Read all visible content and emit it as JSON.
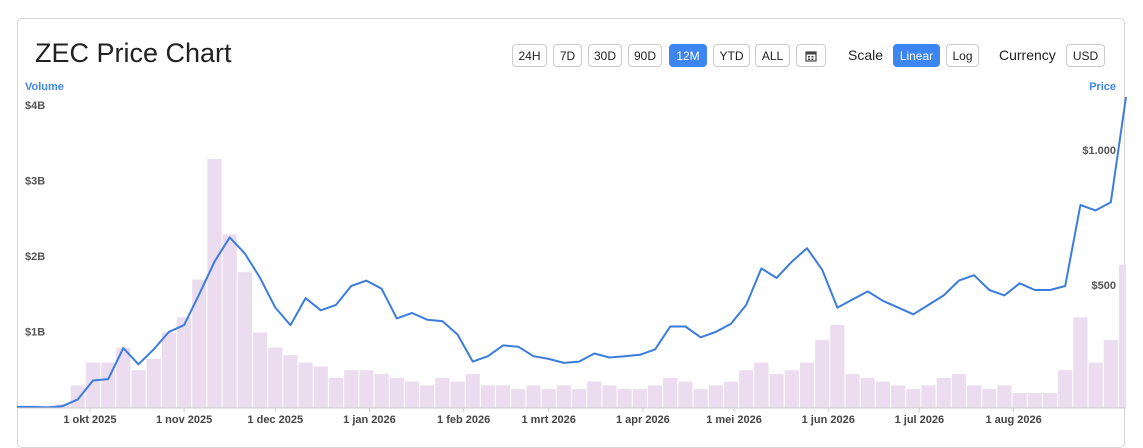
{
  "controls": {
    "title": "ZEC Price Chart",
    "ranges": [
      "24H",
      "7D",
      "30D",
      "90D",
      "12M",
      "YTD",
      "ALL"
    ],
    "scale_label": "Scale",
    "scales": [
      "Linear",
      "Log"
    ],
    "currency_label": "Currency",
    "currency": "USD"
  },
  "chart_data": {
    "type": "bar-line",
    "ylabel": "Volume",
    "y2label": "Price",
    "x": [
      "2025-09-07",
      "2025-09-12",
      "2025-09-17",
      "2025-09-22",
      "2025-09-27",
      "2025-10-02",
      "2025-10-07",
      "2025-10-12",
      "2025-10-17",
      "2025-10-22",
      "2025-10-27",
      "2025-11-01",
      "2025-11-06",
      "2025-11-11",
      "2025-11-16",
      "2025-11-21",
      "2025-11-26",
      "2025-12-01",
      "2025-12-06",
      "2025-12-11",
      "2025-12-16",
      "2025-12-21",
      "2025-12-26",
      "2025-12-31",
      "2026-01-05",
      "2026-01-10",
      "2026-01-15",
      "2026-01-20",
      "2026-01-25",
      "2026-01-30",
      "2026-02-04",
      "2026-02-09",
      "2026-02-14",
      "2026-02-19",
      "2026-02-24",
      "2026-03-01",
      "2026-03-06",
      "2026-03-11",
      "2026-03-16",
      "2026-03-21",
      "2026-03-26",
      "2026-03-31",
      "2026-04-05",
      "2026-04-10",
      "2026-04-15",
      "2026-04-20",
      "2026-04-25",
      "2026-04-30",
      "2026-05-05",
      "2026-05-10",
      "2026-05-15",
      "2026-05-20",
      "2026-05-25",
      "2026-05-30",
      "2026-06-04",
      "2026-06-09",
      "2026-06-14",
      "2026-06-19",
      "2026-06-24",
      "2026-06-29",
      "2026-07-04",
      "2026-07-09",
      "2026-07-14",
      "2026-07-19",
      "2026-07-24",
      "2026-07-29",
      "2026-08-03",
      "2026-08-08",
      "2026-08-13",
      "2026-08-18",
      "2026-08-23",
      "2026-08-28",
      "2026-09-02",
      "2026-09-07"
    ],
    "series": [
      {
        "color": "#ecdcef",
        "chart": "bar",
        "axis": "y",
        "values": [
          0.02,
          0.02,
          0.03,
          0.05,
          0.3,
          0.6,
          0.6,
          0.8,
          0.5,
          0.65,
          1.0,
          1.2,
          1.7,
          3.3,
          2.3,
          1.8,
          1.0,
          0.8,
          0.7,
          0.6,
          0.55,
          0.4,
          0.5,
          0.5,
          0.45,
          0.4,
          0.35,
          0.3,
          0.4,
          0.35,
          0.45,
          0.3,
          0.3,
          0.25,
          0.3,
          0.25,
          0.3,
          0.25,
          0.35,
          0.3,
          0.25,
          0.25,
          0.3,
          0.4,
          0.35,
          0.25,
          0.3,
          0.35,
          0.5,
          0.6,
          0.45,
          0.5,
          0.6,
          0.9,
          1.1,
          0.45,
          0.4,
          0.35,
          0.3,
          0.25,
          0.3,
          0.4,
          0.45,
          0.3,
          0.25,
          0.3,
          0.2,
          0.2,
          0.2,
          0.5,
          1.2,
          0.6,
          0.9,
          1.9
        ]
      },
      {
        "color": "#3b7ddd",
        "chart": "line",
        "axis": "y2",
        "values": [
          52,
          52,
          50,
          55,
          80,
          150,
          155,
          270,
          210,
          265,
          330,
          355,
          470,
          590,
          680,
          620,
          530,
          420,
          355,
          455,
          410,
          430,
          500,
          520,
          490,
          380,
          400,
          375,
          370,
          320,
          220,
          240,
          280,
          275,
          240,
          230,
          215,
          220,
          250,
          235,
          240,
          245,
          265,
          350,
          350,
          310,
          330,
          360,
          430,
          565,
          530,
          590,
          640,
          560,
          420,
          450,
          480,
          445,
          420,
          395,
          430,
          465,
          520,
          540,
          485,
          465,
          510,
          485,
          485,
          500,
          800,
          780,
          810,
          1200
        ]
      }
    ],
    "xlim": [
      "2025-09-07",
      "2026-09-07"
    ],
    "xticks": [
      {
        "value": "2025-10-01",
        "label": "1 okt 2025"
      },
      {
        "value": "2025-11-01",
        "label": "1 nov 2025"
      },
      {
        "value": "2025-12-01",
        "label": "1 dec 2025"
      },
      {
        "value": "2026-01-01",
        "label": "1 jan 2026"
      },
      {
        "value": "2026-02-01",
        "label": "1 feb 2026"
      },
      {
        "value": "2026-03-01",
        "label": "1 mrt 2026"
      },
      {
        "value": "2026-04-01",
        "label": "1 apr 2026"
      },
      {
        "value": "2026-05-01",
        "label": "1 mei 2026"
      },
      {
        "value": "2026-06-01",
        "label": "1 jun 2026"
      },
      {
        "value": "2026-07-01",
        "label": "1 jul 2026"
      },
      {
        "value": "2026-08-01",
        "label": "1 aug 2026"
      }
    ],
    "ylim": [
      0,
      4.12
    ],
    "yticks": [
      {
        "value": 1,
        "label": "$1B"
      },
      {
        "value": 2,
        "label": "$2B"
      },
      {
        "value": 3,
        "label": "$3B"
      },
      {
        "value": 4,
        "label": "$4B"
      }
    ],
    "y2lim": [
      48,
      1200
    ],
    "y2ticks": [
      {
        "value": 500,
        "label": "$500"
      },
      {
        "value": 1000,
        "label": "$1.000"
      }
    ],
    "axis_label_color": "#3d85f0"
  }
}
